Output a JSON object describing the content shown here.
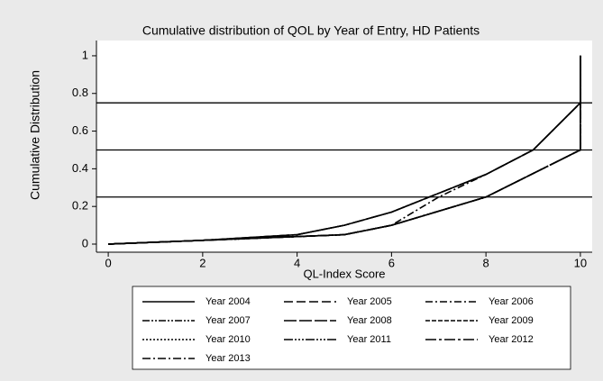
{
  "chart_data": {
    "type": "line",
    "title": "Cumulative distribution of QOL by Year of Entry, HD Patients",
    "x_label": "QL-Index Score",
    "y_label": "Cumulative Distribution",
    "xlim": [
      -0.25,
      10.25
    ],
    "xticks": [
      0,
      2,
      4,
      6,
      8,
      10
    ],
    "ylim": [
      -0.043,
      1.081
    ],
    "yticks": [
      0,
      0.2,
      0.4,
      0.6,
      0.8,
      1
    ],
    "ylines": [
      0.25,
      0.5,
      0.75
    ],
    "series": [
      {
        "name": "Year 2004",
        "color": "#000000",
        "x": [
          0,
          2,
          4,
          5,
          6,
          8,
          9,
          10,
          10
        ],
        "values": [
          0,
          0.02,
          0.05,
          0.1,
          0.17,
          0.37,
          0.5,
          0.75,
          1
        ]
      },
      {
        "name": "Year 2005",
        "color": "#000000",
        "x": [
          0,
          2,
          4,
          5,
          6,
          8,
          10,
          10
        ],
        "values": [
          0,
          0.02,
          0.04,
          0.05,
          0.1,
          0.25,
          0.5,
          1
        ]
      },
      {
        "name": "Year 2006",
        "color": "#000000",
        "x": [
          0,
          2,
          4,
          5,
          6,
          7,
          8,
          9,
          10,
          10
        ],
        "values": [
          0,
          0.02,
          0.04,
          0.05,
          0.1,
          0.25,
          0.37,
          0.5,
          0.75,
          1
        ]
      },
      {
        "name": "Year 2007",
        "color": "#000000",
        "x": [
          0,
          2,
          4,
          5,
          6,
          8,
          10,
          10
        ],
        "values": [
          0,
          0.02,
          0.04,
          0.05,
          0.1,
          0.25,
          0.5,
          1
        ]
      },
      {
        "name": "Year 2008",
        "color": "#000000",
        "x": [
          0,
          2,
          4,
          5,
          6,
          8,
          9,
          10,
          10
        ],
        "values": [
          0,
          0.02,
          0.05,
          0.1,
          0.17,
          0.37,
          0.5,
          0.75,
          1
        ]
      },
      {
        "name": "Year 2009",
        "color": "#000000",
        "x": [
          0,
          2,
          4,
          5,
          6,
          8,
          10,
          10
        ],
        "values": [
          0,
          0.02,
          0.04,
          0.05,
          0.1,
          0.25,
          0.5,
          1
        ]
      },
      {
        "name": "Year 2010",
        "color": "#000000",
        "x": [
          0,
          2,
          4,
          5,
          6,
          8,
          10,
          10
        ],
        "values": [
          0,
          0.02,
          0.04,
          0.05,
          0.1,
          0.25,
          0.5,
          0.95
        ]
      },
      {
        "name": "Year 2011",
        "color": "#000000",
        "x": [
          0,
          2,
          4,
          5,
          6,
          8,
          10,
          10
        ],
        "values": [
          0,
          0.02,
          0.04,
          0.05,
          0.1,
          0.25,
          0.5,
          1
        ]
      },
      {
        "name": "Year 2012",
        "color": "#000000",
        "x": [
          0,
          2,
          4,
          5,
          6,
          8,
          9,
          10,
          10
        ],
        "values": [
          0,
          0.02,
          0.05,
          0.1,
          0.17,
          0.37,
          0.5,
          0.75,
          1
        ]
      },
      {
        "name": "Year 2013",
        "color": "#000000",
        "x": [
          0,
          2,
          4,
          5,
          6,
          8,
          10,
          10
        ],
        "values": [
          0,
          0.02,
          0.04,
          0.05,
          0.1,
          0.25,
          0.5,
          1
        ]
      }
    ]
  }
}
